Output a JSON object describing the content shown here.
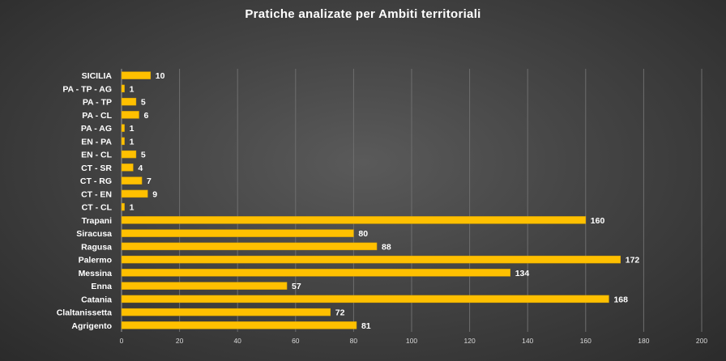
{
  "chart_data": {
    "type": "bar",
    "orientation": "horizontal",
    "title": "Pratiche analizate per Ambiti territoriali",
    "categories": [
      "SICILIA",
      "PA - TP - AG",
      "PA - TP",
      "PA - CL",
      "PA - AG",
      "EN - PA",
      "EN - CL",
      "CT - SR",
      "CT - RG",
      "CT - EN",
      "CT - CL",
      "Trapani",
      "Siracusa",
      "Ragusa",
      "Palermo",
      "Messina",
      "Enna",
      "Catania",
      "Claltanissetta",
      "Agrigento"
    ],
    "values": [
      10,
      1,
      5,
      6,
      1,
      1,
      5,
      4,
      7,
      9,
      1,
      160,
      80,
      88,
      172,
      134,
      57,
      168,
      72,
      81
    ],
    "xlim": [
      0,
      200
    ],
    "xticks": [
      0,
      20,
      40,
      60,
      80,
      100,
      120,
      140,
      160,
      180,
      200
    ],
    "grid": true,
    "data_labels": true,
    "colors": {
      "bar": "#ffc000",
      "bar_edge": "#d9a300",
      "text": "#ffffff"
    }
  }
}
